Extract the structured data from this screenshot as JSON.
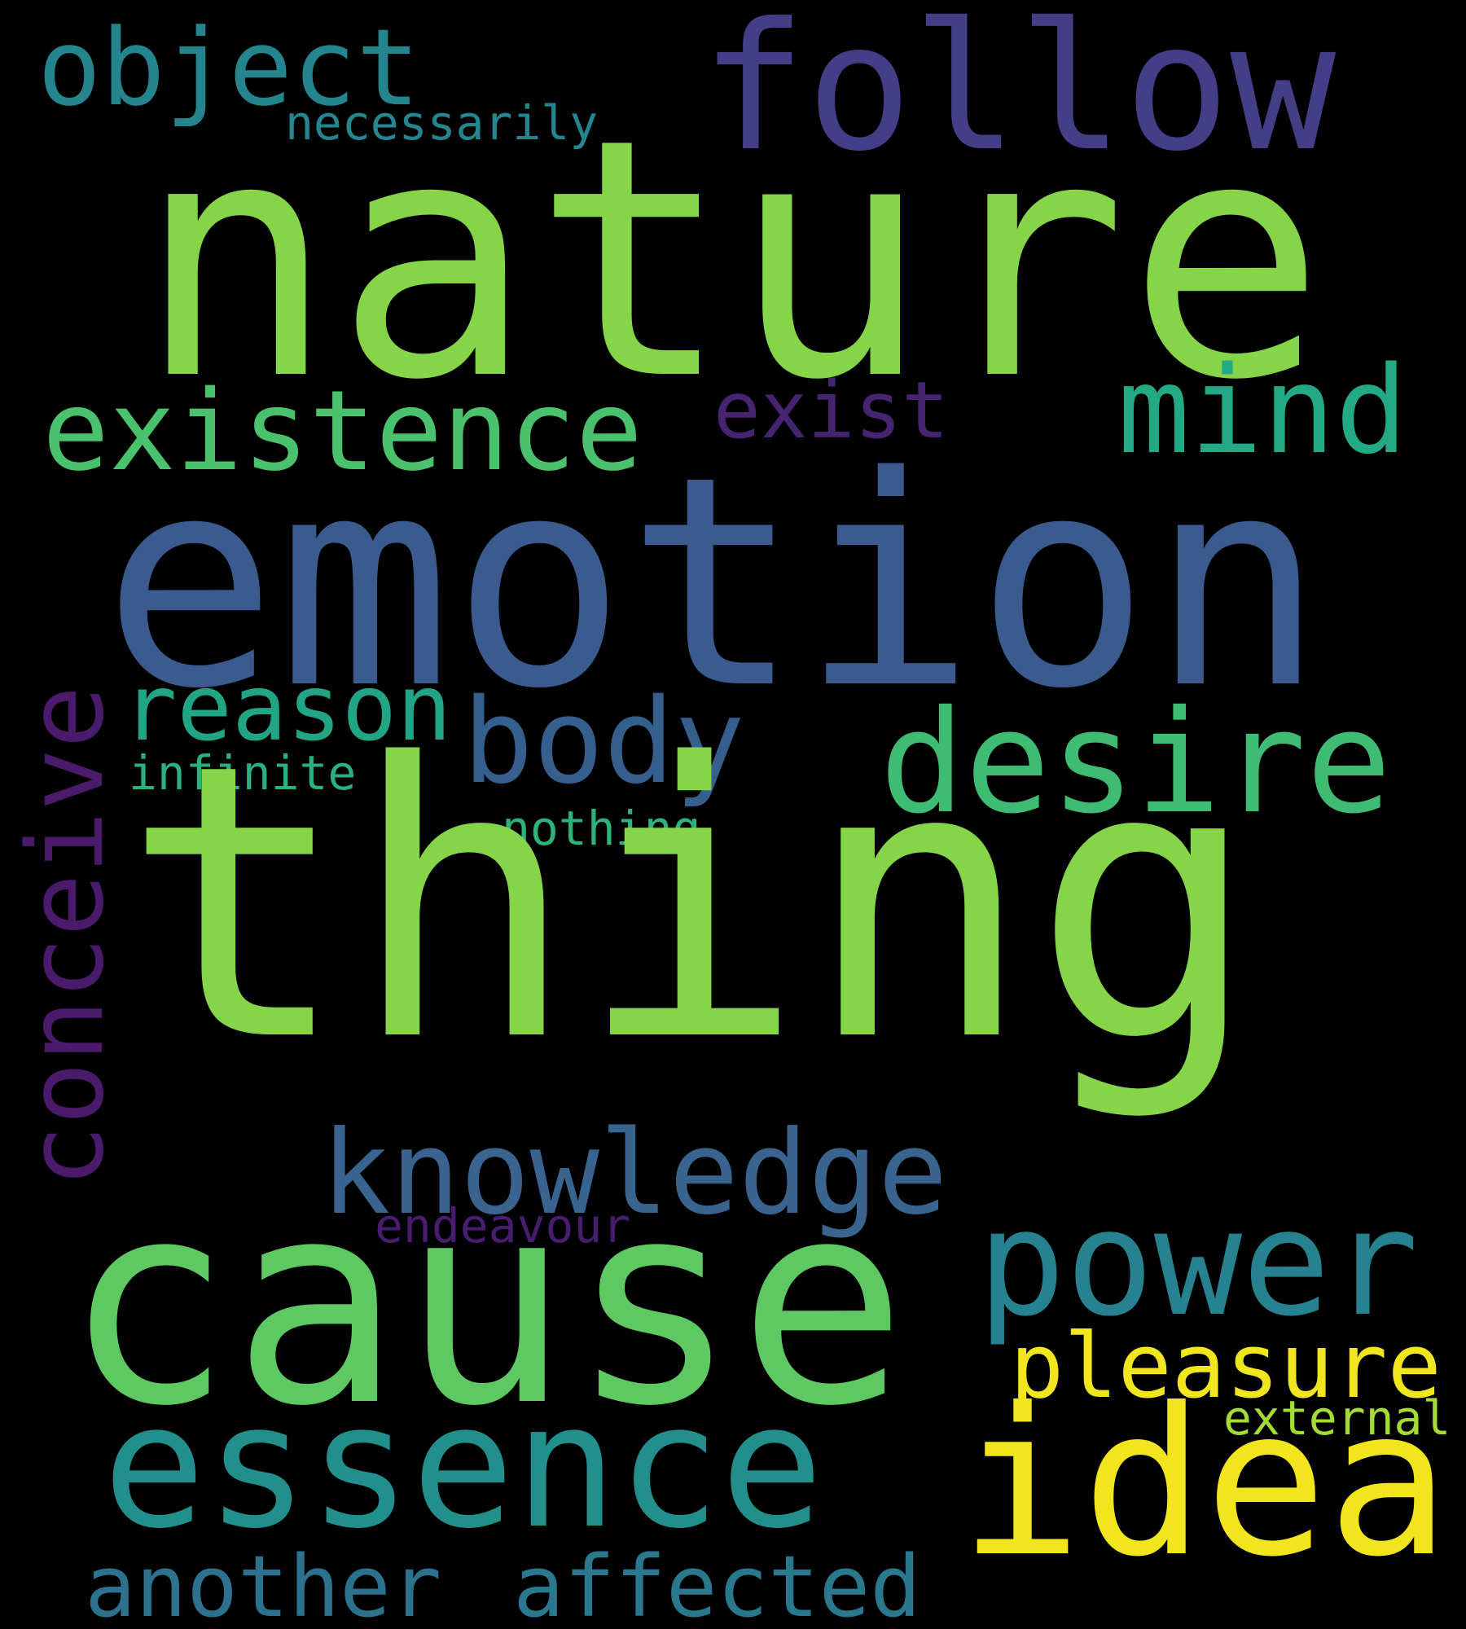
{
  "words": {
    "nature": {
      "text": "nature",
      "color": "#86d549"
    },
    "thing": {
      "text": "thing",
      "color": "#86d549"
    },
    "emotion": {
      "text": "emotion",
      "color": "#3b5a8e"
    },
    "cause": {
      "text": "cause",
      "color": "#5ec962"
    },
    "follow": {
      "text": "follow",
      "color": "#433e85"
    },
    "object": {
      "text": "object",
      "color": "#25858e"
    },
    "necessarily": {
      "text": "necessarily",
      "color": "#24868e"
    },
    "existence": {
      "text": "existence",
      "color": "#4ac16d"
    },
    "exist": {
      "text": "exist",
      "color": "#46246f"
    },
    "mind": {
      "text": "mind",
      "color": "#23a983"
    },
    "conceive": {
      "text": "conceive",
      "color": "#4a1b6b"
    },
    "reason": {
      "text": "reason",
      "color": "#21a585"
    },
    "body": {
      "text": "body",
      "color": "#355f8d"
    },
    "desire": {
      "text": "desire",
      "color": "#3fbc73"
    },
    "infinite": {
      "text": "infinite",
      "color": "#2bb07f"
    },
    "nothing": {
      "text": "nothing",
      "color": "#2eb37c"
    },
    "knowledge": {
      "text": "knowledge",
      "color": "#3a6490"
    },
    "power": {
      "text": "power",
      "color": "#26828e"
    },
    "pleasure": {
      "text": "pleasure",
      "color": "#f1e51d"
    },
    "endeavour": {
      "text": "endeavour",
      "color": "#481d6f"
    },
    "external": {
      "text": "external",
      "color": "#a5db36"
    },
    "essence": {
      "text": "essence",
      "color": "#21908d"
    },
    "idea": {
      "text": "idea",
      "color": "#f1e51d"
    },
    "another": {
      "text": "another",
      "color": "#2c728e"
    },
    "affected": {
      "text": "affected",
      "color": "#2a788e"
    }
  }
}
